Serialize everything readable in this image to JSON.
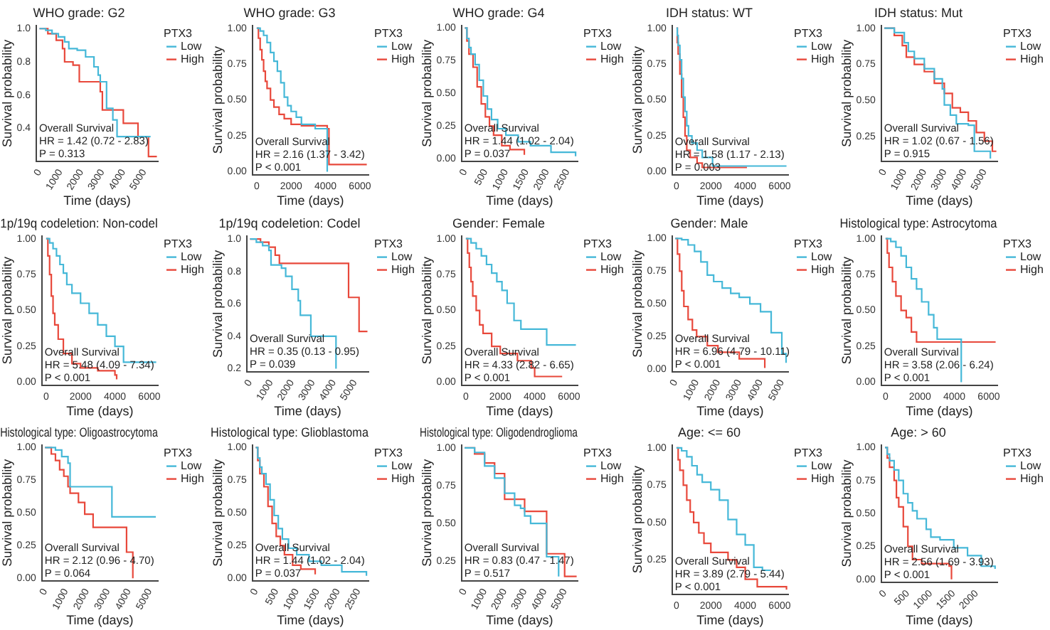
{
  "chart_data": [
    {
      "type": "step",
      "title": "WHO grade: G2",
      "xlabel": "Time (days)",
      "ylabel": "Survival probability",
      "legend_title": "PTX3",
      "legend": "top right",
      "grid": false,
      "xlim": [
        -150,
        5650
      ],
      "xticks": [
        0,
        1000,
        2000,
        3000,
        4000,
        5000
      ],
      "ylim": [
        0.2,
        1.02
      ],
      "yticks": [
        {
          "value": 0.4,
          "label": "0.4"
        },
        {
          "value": 0.6,
          "label": "0.6"
        },
        {
          "value": 0.8,
          "label": "0.8"
        },
        {
          "value": 1,
          "label": "1.0"
        }
      ],
      "annotations": [
        "Overall Survival",
        "HR = 1.42 (0.72 - 2.83)",
        "P = 0.313"
      ],
      "series": [
        {
          "name": "Low",
          "color": "#45b8d8",
          "x": [
            0,
            300,
            600,
            900,
            1200,
            1400,
            1800,
            2200,
            2600,
            2800,
            2900,
            3200,
            3500,
            3700,
            5300
          ],
          "values": [
            1,
            0.99,
            0.97,
            0.95,
            0.92,
            0.88,
            0.87,
            0.83,
            0.77,
            0.72,
            0.68,
            0.52,
            0.45,
            0.35,
            0.35
          ]
        },
        {
          "name": "High",
          "color": "#e8483b",
          "x": [
            0,
            400,
            800,
            1100,
            1200,
            1600,
            1900,
            2800,
            2900,
            3000,
            4000,
            4700,
            5200,
            5600
          ],
          "values": [
            1,
            0.97,
            0.93,
            0.88,
            0.8,
            0.78,
            0.68,
            0.68,
            0.62,
            0.51,
            0.43,
            0.35,
            0.23,
            0.23
          ]
        }
      ]
    },
    {
      "type": "step",
      "title": "WHO grade: G3",
      "xlabel": "Time (days)",
      "ylabel": "Survival probability",
      "legend_title": "PTX3",
      "legend": "top right",
      "grid": false,
      "xlim": [
        -250,
        6500
      ],
      "xticks": [
        0,
        2000,
        4000,
        6000
      ],
      "ylim": [
        -0.02,
        1.02
      ],
      "yticks": [
        {
          "value": 0,
          "label": "0.00"
        },
        {
          "value": 0.25,
          "label": "0.25"
        },
        {
          "value": 0.5,
          "label": "0.50"
        },
        {
          "value": 0.75,
          "label": "0.75"
        },
        {
          "value": 1,
          "label": "1.00"
        }
      ],
      "annotations": [
        "Overall Survival",
        "HR = 2.16 (1.37 - 3.42)",
        "P < 0.001"
      ],
      "series": [
        {
          "name": "Low",
          "color": "#45b8d8",
          "x": [
            0,
            200,
            400,
            600,
            800,
            1000,
            1200,
            1400,
            1600,
            1800,
            2000,
            2300,
            2600,
            3400,
            4100
          ],
          "values": [
            1,
            0.98,
            0.95,
            0.9,
            0.83,
            0.77,
            0.7,
            0.62,
            0.52,
            0.46,
            0.42,
            0.38,
            0.33,
            0.3,
            0
          ]
        },
        {
          "name": "High",
          "color": "#e8483b",
          "x": [
            0,
            100,
            200,
            300,
            400,
            500,
            600,
            800,
            1000,
            1300,
            1600,
            2000,
            2600,
            4100,
            4200,
            6400
          ],
          "values": [
            1,
            0.93,
            0.85,
            0.78,
            0.7,
            0.63,
            0.58,
            0.5,
            0.45,
            0.4,
            0.37,
            0.33,
            0.32,
            0.3,
            0.05,
            0.05
          ]
        }
      ]
    },
    {
      "type": "step",
      "title": "WHO grade: G4",
      "xlabel": "Time (days)",
      "ylabel": "Survival probability",
      "legend_title": "PTX3",
      "legend": "top right",
      "grid": false,
      "xlim": [
        -80,
        2750
      ],
      "xticks": [
        0,
        500,
        1000,
        1500,
        2000,
        2500
      ],
      "ylim": [
        -0.02,
        1.02
      ],
      "yticks": [
        {
          "value": 0,
          "label": "0.00"
        },
        {
          "value": 0.25,
          "label": "0.25"
        },
        {
          "value": 0.5,
          "label": "0.50"
        },
        {
          "value": 0.75,
          "label": "0.75"
        },
        {
          "value": 1,
          "label": "1.00"
        }
      ],
      "annotations": [
        "Overall Survival",
        "HR = 1.44 (1.02 - 2.04)",
        "P = 0.037"
      ],
      "series": [
        {
          "name": "Low",
          "color": "#45b8d8",
          "x": [
            0,
            50,
            100,
            150,
            250,
            350,
            450,
            550,
            650,
            800,
            1000,
            1300,
            1600,
            2100,
            2700
          ],
          "values": [
            1,
            0.92,
            0.85,
            0.8,
            0.72,
            0.6,
            0.48,
            0.38,
            0.3,
            0.23,
            0.18,
            0.13,
            0.1,
            0.05,
            0.02
          ]
        },
        {
          "name": "High",
          "color": "#e8483b",
          "x": [
            0,
            50,
            100,
            200,
            300,
            400,
            500,
            600,
            700,
            900,
            1100,
            1450
          ],
          "values": [
            1,
            0.9,
            0.8,
            0.7,
            0.55,
            0.42,
            0.32,
            0.25,
            0.18,
            0.1,
            0.07,
            0.03
          ]
        }
      ]
    },
    {
      "type": "step",
      "title": "IDH status: WT",
      "xlabel": "Time (days)",
      "ylabel": "Survival probability",
      "legend_title": "PTX3",
      "legend": "top right",
      "grid": false,
      "xlim": [
        -250,
        6500
      ],
      "xticks": [
        0,
        2000,
        4000,
        6000
      ],
      "ylim": [
        -0.02,
        1.02
      ],
      "yticks": [
        {
          "value": 0,
          "label": "0.00"
        },
        {
          "value": 0.25,
          "label": "0.25"
        },
        {
          "value": 0.5,
          "label": "0.50"
        },
        {
          "value": 0.75,
          "label": "0.75"
        },
        {
          "value": 1,
          "label": "1.00"
        }
      ],
      "annotations": [
        "Overall Survival",
        "HR = 1.58 (1.17 - 2.13)",
        "P = 0.003"
      ],
      "series": [
        {
          "name": "Low",
          "color": "#45b8d8",
          "x": [
            0,
            50,
            100,
            200,
            300,
            400,
            500,
            600,
            700,
            900,
            1200,
            1500,
            2100,
            6400
          ],
          "values": [
            1,
            0.95,
            0.88,
            0.78,
            0.65,
            0.52,
            0.42,
            0.32,
            0.25,
            0.2,
            0.15,
            0.1,
            0.04,
            0.04
          ]
        },
        {
          "name": "High",
          "color": "#e8483b",
          "x": [
            0,
            50,
            100,
            200,
            300,
            400,
            500,
            600,
            800,
            1200,
            1500,
            4100
          ],
          "values": [
            1,
            0.9,
            0.82,
            0.68,
            0.52,
            0.38,
            0.25,
            0.15,
            0.1,
            0.06,
            0.03,
            0.03
          ]
        }
      ]
    },
    {
      "type": "step",
      "title": "IDH status: Mut",
      "xlabel": "Time (days)",
      "ylabel": "Survival probability",
      "legend_title": "PTX3",
      "legend": "top right",
      "grid": false,
      "xlim": [
        -150,
        5650
      ],
      "xticks": [
        0,
        1000,
        2000,
        3000,
        4000,
        5000
      ],
      "ylim": [
        0.08,
        1.02
      ],
      "yticks": [
        {
          "value": 0.25,
          "label": "0.25"
        },
        {
          "value": 0.5,
          "label": "0.50"
        },
        {
          "value": 0.75,
          "label": "0.75"
        },
        {
          "value": 1,
          "label": "1.00"
        }
      ],
      "annotations": [
        "Overall Survival",
        "HR = 1.02 (0.67 - 1.56)",
        "P = 0.915"
      ],
      "series": [
        {
          "name": "Low",
          "color": "#45b8d8",
          "x": [
            0,
            500,
            1000,
            1200,
            1500,
            2000,
            2500,
            2900,
            3000,
            3300,
            3600,
            4200,
            4500,
            5300
          ],
          "values": [
            1,
            0.97,
            0.9,
            0.84,
            0.79,
            0.72,
            0.65,
            0.58,
            0.47,
            0.4,
            0.34,
            0.33,
            0.15,
            0.1
          ]
        },
        {
          "name": "High",
          "color": "#e8483b",
          "x": [
            0,
            500,
            900,
            1100,
            1500,
            2000,
            2500,
            3000,
            3400,
            3800,
            4200,
            4600,
            5000,
            5400,
            5600
          ],
          "values": [
            1,
            0.95,
            0.88,
            0.8,
            0.75,
            0.7,
            0.62,
            0.55,
            0.45,
            0.42,
            0.36,
            0.28,
            0.22,
            0.15,
            0.15
          ]
        }
      ]
    },
    {
      "type": "step",
      "title": "1p/19q codeletion: Non-codel",
      "xlabel": "Time (days)",
      "ylabel": "Survival probability",
      "legend_title": "PTX3",
      "legend": "top right",
      "grid": false,
      "xlim": [
        -250,
        6500
      ],
      "xticks": [
        0,
        2000,
        4000,
        6000
      ],
      "ylim": [
        -0.02,
        1.02
      ],
      "yticks": [
        {
          "value": 0,
          "label": "0.00"
        },
        {
          "value": 0.25,
          "label": "0.25"
        },
        {
          "value": 0.5,
          "label": "0.50"
        },
        {
          "value": 0.75,
          "label": "0.75"
        },
        {
          "value": 1,
          "label": "1.00"
        }
      ],
      "annotations": [
        "Overall Survival",
        "HR = 5.48 (4.09 - 7.34)",
        "P < 0.001"
      ],
      "series": [
        {
          "name": "Low",
          "color": "#45b8d8",
          "x": [
            0,
            200,
            400,
            600,
            800,
            1000,
            1200,
            1500,
            2000,
            2500,
            3000,
            3500,
            4000,
            4500,
            6400
          ],
          "values": [
            1,
            0.97,
            0.93,
            0.88,
            0.82,
            0.76,
            0.68,
            0.62,
            0.55,
            0.48,
            0.4,
            0.32,
            0.25,
            0.14,
            0.14
          ]
        },
        {
          "name": "High",
          "color": "#e8483b",
          "x": [
            0,
            100,
            200,
            300,
            400,
            500,
            700,
            1000,
            1500,
            2000,
            3000,
            4000,
            4100
          ],
          "values": [
            1,
            0.88,
            0.75,
            0.6,
            0.48,
            0.4,
            0.3,
            0.2,
            0.13,
            0.1,
            0.08,
            0.05,
            0.02
          ]
        }
      ]
    },
    {
      "type": "step",
      "title": "1p/19q codeletion: Codel",
      "xlabel": "Time (days)",
      "ylabel": "Survival probability",
      "legend_title": "PTX3",
      "legend": "top right",
      "grid": false,
      "xlim": [
        -150,
        5650
      ],
      "xticks": [
        0,
        1000,
        2000,
        3000,
        4000,
        5000
      ],
      "ylim": [
        0.18,
        1.02
      ],
      "yticks": [
        {
          "value": 0.2,
          "label": "0.2"
        },
        {
          "value": 0.4,
          "label": "0.4"
        },
        {
          "value": 0.6,
          "label": "0.6"
        },
        {
          "value": 0.8,
          "label": "0.8"
        },
        {
          "value": 1,
          "label": "1.0"
        }
      ],
      "annotations": [
        "Overall Survival",
        "HR = 0.35 (0.13 - 0.95)",
        "P = 0.039"
      ],
      "series": [
        {
          "name": "Low",
          "color": "#45b8d8",
          "x": [
            0,
            300,
            600,
            900,
            1000,
            1500,
            1700,
            2000,
            2300,
            2400,
            2900,
            4100
          ],
          "values": [
            1,
            0.98,
            0.96,
            0.93,
            0.84,
            0.82,
            0.77,
            0.69,
            0.62,
            0.53,
            0.4,
            0.2
          ]
        },
        {
          "name": "High",
          "color": "#e8483b",
          "x": [
            0,
            500,
            900,
            1200,
            1400,
            4700,
            5200,
            5600
          ],
          "values": [
            1,
            0.98,
            0.95,
            0.9,
            0.85,
            0.64,
            0.43,
            0.43
          ]
        }
      ]
    },
    {
      "type": "step",
      "title": "Gender: Female",
      "xlabel": "Time (days)",
      "ylabel": "Survival probability",
      "legend_title": "PTX3",
      "legend": "top right",
      "grid": false,
      "xlim": [
        -250,
        6500
      ],
      "xticks": [
        0,
        2000,
        4000,
        6000
      ],
      "ylim": [
        -0.02,
        1.02
      ],
      "yticks": [
        {
          "value": 0,
          "label": "0.00"
        },
        {
          "value": 0.25,
          "label": "0.25"
        },
        {
          "value": 0.5,
          "label": "0.50"
        },
        {
          "value": 0.75,
          "label": "0.75"
        },
        {
          "value": 1,
          "label": "1.00"
        }
      ],
      "annotations": [
        "Overall Survival",
        "HR = 4.33 (2.82 - 6.65)",
        "P < 0.001"
      ],
      "series": [
        {
          "name": "Low",
          "color": "#45b8d8",
          "x": [
            0,
            300,
            600,
            900,
            1200,
            1500,
            1800,
            2100,
            2400,
            2800,
            3200,
            4000,
            4700,
            6400
          ],
          "values": [
            1,
            0.97,
            0.93,
            0.88,
            0.82,
            0.76,
            0.7,
            0.64,
            0.55,
            0.43,
            0.37,
            0.37,
            0.26,
            0.26
          ]
        },
        {
          "name": "High",
          "color": "#e8483b",
          "x": [
            0,
            100,
            200,
            300,
            400,
            600,
            800,
            1000,
            1500,
            2000,
            3000,
            3800,
            4000,
            5600
          ],
          "values": [
            1,
            0.9,
            0.8,
            0.7,
            0.6,
            0.5,
            0.4,
            0.34,
            0.25,
            0.2,
            0.15,
            0.1,
            0.04,
            0.04
          ]
        }
      ]
    },
    {
      "type": "step",
      "title": "Gender: Male",
      "xlabel": "Time (days)",
      "ylabel": "Survival probability",
      "legend_title": "PTX3",
      "legend": "top right",
      "grid": false,
      "xlim": [
        -150,
        5300
      ],
      "xticks": [
        0,
        1000,
        2000,
        3000,
        4000,
        5000
      ],
      "ylim": [
        -0.02,
        1.02
      ],
      "yticks": [
        {
          "value": 0,
          "label": "0.00"
        },
        {
          "value": 0.25,
          "label": "0.25"
        },
        {
          "value": 0.5,
          "label": "0.50"
        },
        {
          "value": 0.75,
          "label": "0.75"
        },
        {
          "value": 1,
          "label": "1.00"
        }
      ],
      "annotations": [
        "Overall Survival",
        "HR = 6.96 (4.79 - 10.11)",
        "P < 0.001"
      ],
      "series": [
        {
          "name": "Low",
          "color": "#45b8d8",
          "x": [
            0,
            300,
            600,
            900,
            1200,
            1500,
            1800,
            2200,
            2600,
            3000,
            3500,
            4000,
            4500,
            5000,
            5200
          ],
          "values": [
            1,
            0.99,
            0.95,
            0.9,
            0.82,
            0.72,
            0.67,
            0.62,
            0.58,
            0.55,
            0.5,
            0.44,
            0.28,
            0.12,
            0.05
          ]
        },
        {
          "name": "High",
          "color": "#e8483b",
          "x": [
            0,
            100,
            200,
            300,
            400,
            600,
            800,
            1000,
            1500,
            2000,
            3000,
            4200
          ],
          "values": [
            1,
            0.88,
            0.75,
            0.6,
            0.48,
            0.38,
            0.3,
            0.25,
            0.18,
            0.13,
            0.08,
            0.01
          ]
        }
      ]
    },
    {
      "type": "step",
      "title": "Histological type: Astrocytoma",
      "xlabel": "Time (days)",
      "ylabel": "Survival probability",
      "legend_title": "PTX3",
      "legend": "top right",
      "grid": false,
      "xlim": [
        -250,
        6500
      ],
      "xticks": [
        0,
        2000,
        4000,
        6000
      ],
      "ylim": [
        -0.02,
        1.02
      ],
      "yticks": [
        {
          "value": 0,
          "label": "0.00"
        },
        {
          "value": 0.25,
          "label": "0.25"
        },
        {
          "value": 0.5,
          "label": "0.50"
        },
        {
          "value": 0.75,
          "label": "0.75"
        },
        {
          "value": 1,
          "label": "1.00"
        }
      ],
      "annotations": [
        "Overall Survival",
        "HR = 3.58 (2.06 - 6.24)",
        "P < 0.001"
      ],
      "series": [
        {
          "name": "Low",
          "color": "#45b8d8",
          "x": [
            0,
            300,
            600,
            900,
            1200,
            1500,
            1800,
            2100,
            2500,
            2800,
            3000,
            4400
          ],
          "values": [
            1,
            0.98,
            0.94,
            0.88,
            0.8,
            0.72,
            0.65,
            0.56,
            0.47,
            0.38,
            0.3,
            0
          ]
        },
        {
          "name": "High",
          "color": "#e8483b",
          "x": [
            0,
            100,
            200,
            400,
            600,
            900,
            1200,
            1500,
            1800,
            6400
          ],
          "values": [
            1,
            0.9,
            0.8,
            0.7,
            0.6,
            0.5,
            0.45,
            0.35,
            0.28,
            0.28
          ]
        }
      ]
    },
    {
      "type": "step",
      "title": "Histological type: Oligoastrocytoma",
      "xlabel": "Time (days)",
      "ylabel": "Survival probability",
      "legend_title": "PTX3",
      "legend": "top right",
      "grid": false,
      "xlim": [
        -150,
        5400
      ],
      "xticks": [
        0,
        1000,
        2000,
        3000,
        4000,
        5000
      ],
      "ylim": [
        -0.02,
        1.02
      ],
      "yticks": [
        {
          "value": 0,
          "label": "0.00"
        },
        {
          "value": 0.25,
          "label": "0.25"
        },
        {
          "value": 0.5,
          "label": "0.50"
        },
        {
          "value": 0.75,
          "label": "0.75"
        },
        {
          "value": 1,
          "label": "1.00"
        }
      ],
      "annotations": [
        "Overall Survival",
        "HR = 2.12 (0.96 - 4.70)",
        "P = 0.064"
      ],
      "series": [
        {
          "name": "Low",
          "color": "#45b8d8",
          "x": [
            0,
            500,
            800,
            1100,
            1200,
            3200,
            5300
          ],
          "values": [
            1,
            0.98,
            0.93,
            0.88,
            0.7,
            0.47,
            0.47
          ]
        },
        {
          "name": "High",
          "color": "#e8483b",
          "x": [
            0,
            300,
            500,
            700,
            900,
            1100,
            1200,
            1600,
            1900,
            2300,
            3900,
            4200
          ],
          "values": [
            1,
            0.95,
            0.9,
            0.83,
            0.78,
            0.7,
            0.65,
            0.58,
            0.49,
            0.39,
            0.2,
            0
          ]
        }
      ]
    },
    {
      "type": "step",
      "title": "Histological type: Glioblastoma",
      "xlabel": "Time (days)",
      "ylabel": "Survival probability",
      "legend_title": "PTX3",
      "legend": "top right",
      "grid": false,
      "xlim": [
        -80,
        2750
      ],
      "xticks": [
        0,
        500,
        1000,
        1500,
        2000,
        2500
      ],
      "ylim": [
        -0.02,
        1.02
      ],
      "yticks": [
        {
          "value": 0,
          "label": "0.00"
        },
        {
          "value": 0.25,
          "label": "0.25"
        },
        {
          "value": 0.5,
          "label": "0.50"
        },
        {
          "value": 0.75,
          "label": "0.75"
        },
        {
          "value": 1,
          "label": "1.00"
        }
      ],
      "annotations": [
        "Overall Survival",
        "HR = 1.44 (1.02 - 2.04)",
        "P = 0.037"
      ],
      "series": [
        {
          "name": "Low",
          "color": "#45b8d8",
          "x": [
            0,
            50,
            100,
            150,
            250,
            350,
            450,
            550,
            650,
            800,
            1000,
            1300,
            1600,
            2100,
            2700
          ],
          "values": [
            1,
            0.92,
            0.85,
            0.8,
            0.72,
            0.6,
            0.48,
            0.38,
            0.3,
            0.23,
            0.18,
            0.13,
            0.1,
            0.05,
            0.02
          ]
        },
        {
          "name": "High",
          "color": "#e8483b",
          "x": [
            0,
            50,
            100,
            200,
            300,
            400,
            500,
            600,
            700,
            900,
            1100,
            1450
          ],
          "values": [
            1,
            0.9,
            0.8,
            0.7,
            0.55,
            0.42,
            0.32,
            0.25,
            0.18,
            0.1,
            0.07,
            0.03
          ]
        }
      ]
    },
    {
      "type": "step",
      "title": "Histological type: Oligodendroglioma",
      "xlabel": "Time (days)",
      "ylabel": "Survival probability",
      "legend_title": "PTX3",
      "legend": "top right",
      "grid": false,
      "xlim": [
        -150,
        5650
      ],
      "xticks": [
        0,
        1000,
        2000,
        3000,
        4000,
        5000
      ],
      "ylim": [
        0.12,
        1.02
      ],
      "yticks": [
        {
          "value": 0.25,
          "label": "0.25"
        },
        {
          "value": 0.5,
          "label": "0.50"
        },
        {
          "value": 0.75,
          "label": "0.75"
        },
        {
          "value": 1,
          "label": "1.00"
        }
      ],
      "annotations": [
        "Overall Survival",
        "HR = 0.83 (0.47 - 1.47)",
        "P = 0.517"
      ],
      "series": [
        {
          "name": "Low",
          "color": "#45b8d8",
          "x": [
            0,
            500,
            1000,
            1500,
            2000,
            2500,
            2800,
            3000,
            3300,
            4100,
            4700
          ],
          "values": [
            1,
            0.97,
            0.88,
            0.8,
            0.7,
            0.62,
            0.6,
            0.55,
            0.5,
            0.28,
            0.15
          ]
        },
        {
          "name": "High",
          "color": "#e8483b",
          "x": [
            0,
            500,
            1000,
            1500,
            2000,
            2900,
            3000,
            4100,
            5000,
            5600
          ],
          "values": [
            1,
            0.96,
            0.9,
            0.83,
            0.66,
            0.66,
            0.58,
            0.3,
            0.15,
            0.15
          ]
        }
      ]
    },
    {
      "type": "step",
      "title": "Age: <= 60",
      "xlabel": "Time (days)",
      "ylabel": "Survival probability",
      "legend_title": "PTX3",
      "legend": "top right",
      "grid": false,
      "xlim": [
        -250,
        6500
      ],
      "xticks": [
        0,
        2000,
        4000,
        6000
      ],
      "ylim": [
        0.02,
        1.02
      ],
      "yticks": [
        {
          "value": 0.25,
          "label": "0.25"
        },
        {
          "value": 0.5,
          "label": "0.50"
        },
        {
          "value": 0.75,
          "label": "0.75"
        },
        {
          "value": 1,
          "label": "1.00"
        }
      ],
      "annotations": [
        "Overall Survival",
        "HR = 3.89 (2.79 - 5.44)",
        "P < 0.001"
      ],
      "series": [
        {
          "name": "Low",
          "color": "#45b8d8",
          "x": [
            0,
            300,
            600,
            900,
            1200,
            1500,
            2000,
            2500,
            3000,
            3500,
            4000,
            4500,
            5000,
            5500
          ],
          "values": [
            1,
            0.98,
            0.94,
            0.88,
            0.82,
            0.77,
            0.72,
            0.65,
            0.52,
            0.42,
            0.35,
            0.2,
            0.18,
            0.18
          ]
        },
        {
          "name": "High",
          "color": "#e8483b",
          "x": [
            0,
            100,
            200,
            400,
            600,
            800,
            1000,
            1300,
            1600,
            2000,
            3000,
            3500,
            4000,
            4700,
            6400
          ],
          "values": [
            1,
            0.92,
            0.85,
            0.75,
            0.65,
            0.57,
            0.5,
            0.43,
            0.36,
            0.3,
            0.25,
            0.2,
            0.12,
            0.07,
            0.05
          ]
        }
      ]
    },
    {
      "type": "step",
      "title": "Age: > 60",
      "xlabel": "Time (days)",
      "ylabel": "Survival probability",
      "legend_title": "PTX3",
      "legend": "top right",
      "grid": false,
      "xlim": [
        -80,
        2450
      ],
      "xticks": [
        0,
        500,
        1000,
        1500,
        2000
      ],
      "ylim": [
        -0.02,
        1.02
      ],
      "yticks": [
        {
          "value": 0,
          "label": "0.00"
        },
        {
          "value": 0.25,
          "label": "0.25"
        },
        {
          "value": 0.5,
          "label": "0.50"
        },
        {
          "value": 0.75,
          "label": "0.75"
        },
        {
          "value": 1,
          "label": "1.00"
        }
      ],
      "annotations": [
        "Overall Survival",
        "HR = 2.56 (1.69 - 3.93)",
        "P < 0.001"
      ],
      "series": [
        {
          "name": "Low",
          "color": "#45b8d8",
          "x": [
            0,
            50,
            100,
            200,
            300,
            400,
            500,
            600,
            700,
            900,
            1000,
            1200,
            1500,
            1800,
            2100,
            2400
          ],
          "values": [
            1,
            0.95,
            0.9,
            0.83,
            0.75,
            0.65,
            0.58,
            0.52,
            0.46,
            0.38,
            0.32,
            0.3,
            0.24,
            0.18,
            0.1,
            0.08
          ]
        },
        {
          "name": "High",
          "color": "#e8483b",
          "x": [
            0,
            50,
            100,
            200,
            250,
            300,
            400,
            500,
            600,
            800,
            1400,
            1450
          ],
          "values": [
            1,
            0.92,
            0.85,
            0.75,
            0.62,
            0.55,
            0.4,
            0.25,
            0.15,
            0.12,
            0.1,
            0
          ]
        }
      ]
    }
  ]
}
